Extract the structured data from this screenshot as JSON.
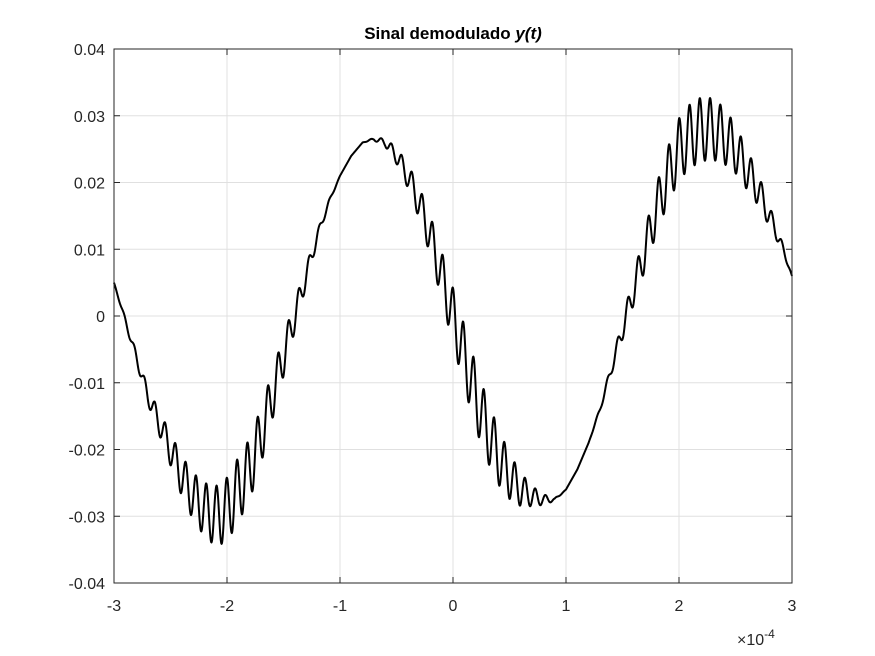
{
  "chart_data": {
    "type": "line",
    "title_plain": "Sinal demodulado ",
    "title_italic": "y(t)",
    "xlabel": "",
    "ylabel": "",
    "x_exponent_prefix": "×10",
    "x_exponent_power": "-4",
    "x_scale": 0.0001,
    "xlim": [
      -3,
      3
    ],
    "ylim": [
      -0.04,
      0.04
    ],
    "x_ticks": [
      -3,
      -2,
      -1,
      0,
      1,
      2,
      3
    ],
    "x_tick_labels": [
      "-3",
      "-2",
      "-1",
      "0",
      "1",
      "2",
      "3"
    ],
    "y_ticks": [
      -0.04,
      -0.03,
      -0.02,
      -0.01,
      0,
      0.01,
      0.02,
      0.03,
      0.04
    ],
    "y_tick_labels": [
      "-0.04",
      "-0.03",
      "-0.02",
      "-0.01",
      "0",
      "0.01",
      "0.02",
      "0.03",
      "0.04"
    ],
    "grid": true,
    "box": true,
    "line_color": "#000000",
    "grid_color": "#e0e0e0",
    "axis_color": "#262626",
    "series": [
      {
        "x": [
          -3.0,
          -2.7,
          -2.6,
          -2.5,
          -2.4,
          -2.3,
          -2.2,
          -2.1,
          -2.0,
          -1.9,
          -1.8,
          -1.7,
          -1.6,
          -1.5,
          -1.4,
          -1.3,
          -1.2,
          -1.1,
          -1.0,
          -0.9,
          -0.8,
          -0.7,
          -0.6,
          -0.5,
          -0.4,
          -0.3,
          -0.2,
          -0.1,
          0.0,
          0.1,
          0.2,
          0.3,
          0.4,
          0.5,
          0.6,
          0.7,
          0.8,
          0.9,
          1.0,
          1.1,
          1.2,
          1.3,
          1.4,
          1.5,
          1.6,
          1.7,
          1.8,
          1.9,
          2.0,
          2.1,
          2.2,
          2.3,
          2.4,
          2.5,
          2.6,
          2.7,
          2.8,
          2.9,
          3.0
        ],
        "y": [
          0.005,
          -0.012,
          -0.016,
          -0.02,
          -0.024,
          -0.027,
          -0.029,
          -0.03,
          -0.029,
          -0.026,
          -0.023,
          -0.018,
          -0.012,
          -0.006,
          0.0,
          0.006,
          0.012,
          0.017,
          0.021,
          0.024,
          0.026,
          0.0265,
          0.026,
          0.024,
          0.021,
          0.017,
          0.012,
          0.006,
          0.0,
          -0.006,
          -0.012,
          -0.017,
          -0.021,
          -0.024,
          -0.026,
          -0.027,
          -0.0275,
          -0.0275,
          -0.026,
          -0.023,
          -0.019,
          -0.014,
          -0.008,
          -0.002,
          0.004,
          0.01,
          0.016,
          0.021,
          0.025,
          0.027,
          0.028,
          0.028,
          0.027,
          0.025,
          0.022,
          0.019,
          0.015,
          0.011,
          0.006
        ],
        "ripple_envelope": [
          0.0,
          0.0012,
          0.0018,
          0.0024,
          0.003,
          0.0035,
          0.004,
          0.0045,
          0.0048,
          0.0048,
          0.0046,
          0.0042,
          0.0036,
          0.003,
          0.0022,
          0.0015,
          0.0008,
          0.0003,
          0.0,
          0.0,
          0.0,
          0.0002,
          0.0006,
          0.0012,
          0.0018,
          0.0024,
          0.003,
          0.0036,
          0.0042,
          0.0046,
          0.0048,
          0.0046,
          0.0042,
          0.0034,
          0.0025,
          0.0015,
          0.0008,
          0.0002,
          0.0,
          0.0,
          0.0,
          0.0003,
          0.0008,
          0.0015,
          0.0022,
          0.003,
          0.0036,
          0.0042,
          0.0046,
          0.0048,
          0.0048,
          0.0046,
          0.0042,
          0.0036,
          0.003,
          0.0024,
          0.0016,
          0.0008,
          0.0
        ],
        "ripple_period": 0.091
      }
    ]
  }
}
